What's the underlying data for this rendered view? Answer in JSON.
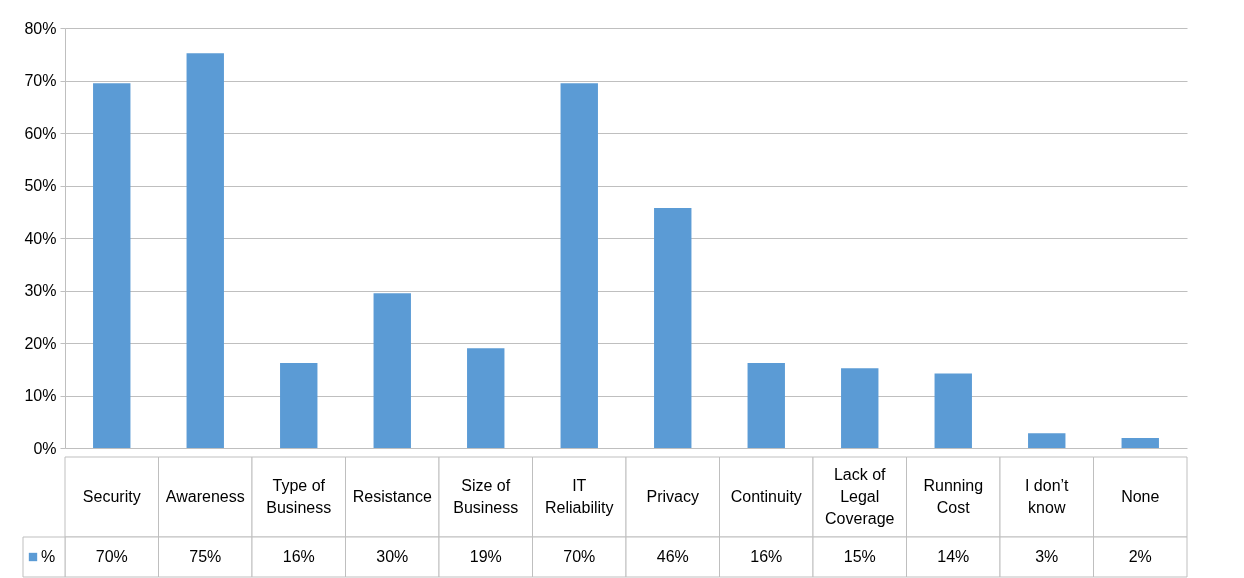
{
  "chart_data": {
    "type": "bar",
    "categories": [
      "Security",
      "Awareness",
      "Type of Business",
      "Resistance",
      "Size of Business",
      "IT Reliability",
      "Privacy",
      "Continuity",
      "Lack of Legal Coverage",
      "Running Cost",
      "I don’t know",
      "None"
    ],
    "series": [
      {
        "name": "%",
        "color": "#5b9bd5",
        "values": [
          69.5,
          75.2,
          16.2,
          29.5,
          19,
          69.5,
          45.7,
          16.2,
          15.2,
          14.2,
          2.8,
          1.9
        ],
        "value_labels": [
          "70%",
          "75%",
          "16%",
          "30%",
          "19%",
          "70%",
          "46%",
          "16%",
          "15%",
          "14%",
          "3%",
          "2%"
        ]
      }
    ],
    "ylim": [
      0,
      80
    ],
    "yticks": [
      {
        "value": 0,
        "label": "0%"
      },
      {
        "value": 10,
        "label": "10%"
      },
      {
        "value": 20,
        "label": "20%"
      },
      {
        "value": 30,
        "label": "30%"
      },
      {
        "value": 40,
        "label": "40%"
      },
      {
        "value": 50,
        "label": "50%"
      },
      {
        "value": 60,
        "label": "60%"
      },
      {
        "value": 70,
        "label": "70%"
      },
      {
        "value": 80,
        "label": "80%"
      }
    ],
    "grid": "y",
    "legend": "bottom"
  }
}
